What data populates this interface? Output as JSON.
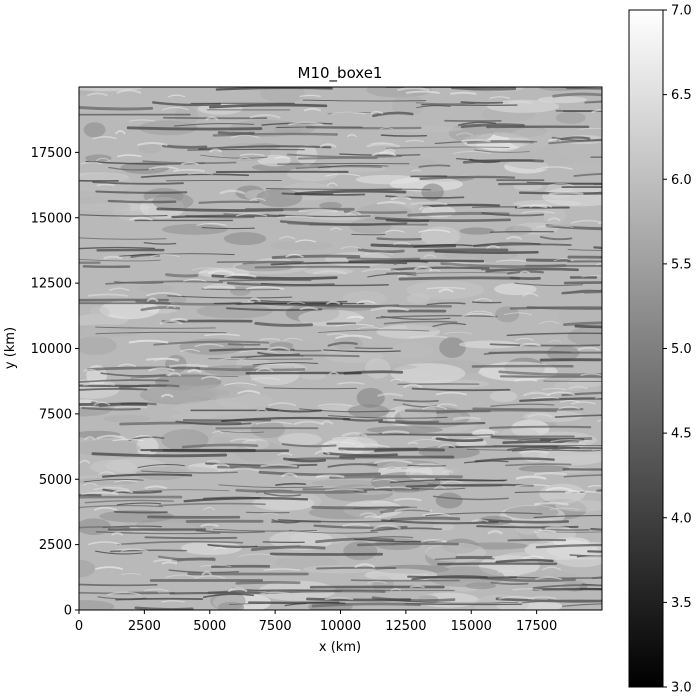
{
  "chart_data": {
    "type": "heatmap",
    "title": "M10_boxe1",
    "xlabel": "x (km)",
    "ylabel": "y (km)",
    "xlim": [
      0,
      20000
    ],
    "ylim": [
      0,
      20000
    ],
    "x_ticks": [
      0,
      2500,
      5000,
      7500,
      10000,
      12500,
      15000,
      17500
    ],
    "x_tick_labels": [
      "0",
      "2500",
      "5000",
      "7500",
      "10000",
      "12500",
      "15000",
      "17500"
    ],
    "y_ticks": [
      0,
      2500,
      5000,
      7500,
      10000,
      12500,
      15000,
      17500
    ],
    "y_tick_labels": [
      "0",
      "2500",
      "5000",
      "7500",
      "10000",
      "12500",
      "15000",
      "17500"
    ],
    "colormap": "gray",
    "colorbar": {
      "vmin": 3.0,
      "vmax": 7.0,
      "ticks": [
        3.0,
        3.5,
        4.0,
        4.5,
        5.0,
        5.5,
        6.0,
        6.5,
        7.0
      ],
      "tick_labels": [
        "3.0",
        "3.5",
        "4.0",
        "4.5",
        "5.0",
        "5.5",
        "6.0",
        "6.5",
        "7.0"
      ]
    },
    "value_range_shown": [
      3.8,
      6.8
    ],
    "grid": false
  }
}
